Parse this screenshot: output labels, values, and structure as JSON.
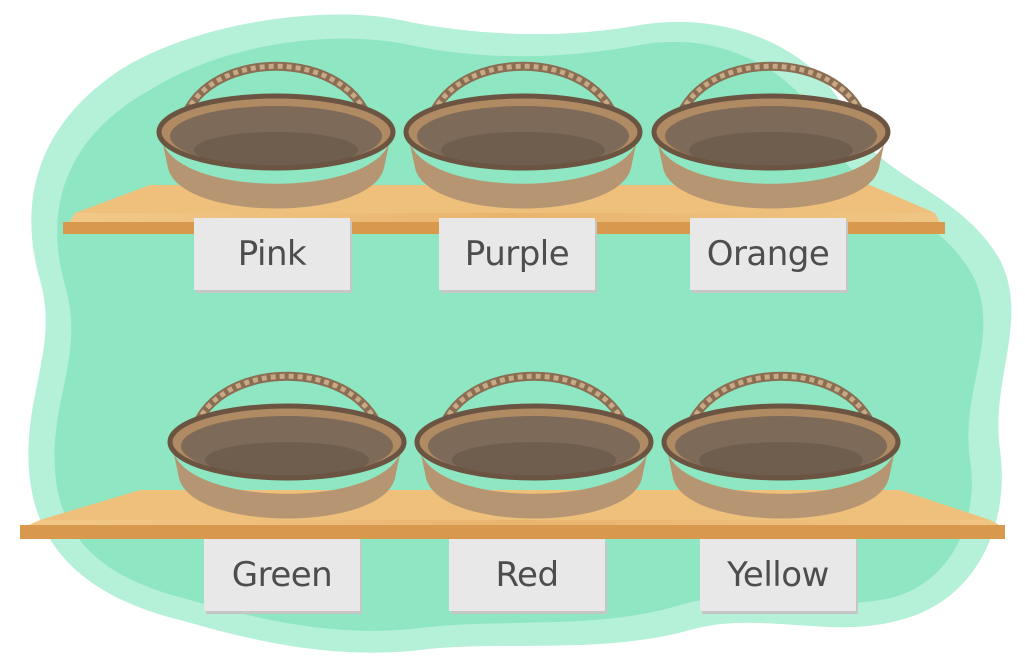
{
  "colors": {
    "background_blob": "#8ee6c2",
    "background_blob_light": "#b5f0d9",
    "shelf": "#e6b26b",
    "shelf_edge": "#d08f44",
    "basket_rim": "#b08a62",
    "basket_inner": "#7d6a58",
    "label_bg": "#e8e8e8",
    "label_text": "#4d4d4d"
  },
  "shelves": [
    {
      "baskets": [
        {
          "icon": "basket-icon"
        },
        {
          "icon": "basket-icon"
        },
        {
          "icon": "basket-icon"
        }
      ],
      "labels": [
        "Pink",
        "Purple",
        "Orange"
      ]
    },
    {
      "baskets": [
        {
          "icon": "basket-icon"
        },
        {
          "icon": "basket-icon"
        },
        {
          "icon": "basket-icon"
        }
      ],
      "labels": [
        "Green",
        "Red",
        "Yellow"
      ]
    }
  ]
}
